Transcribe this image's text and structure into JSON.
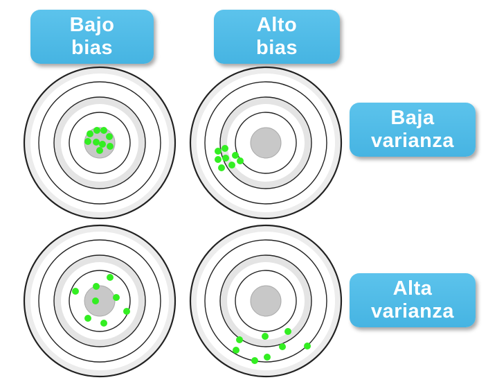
{
  "labels": {
    "low_bias": [
      "Bajo",
      "bias"
    ],
    "high_bias": [
      "Alto",
      "bias"
    ],
    "low_variance": [
      "Baja",
      "varianza"
    ],
    "high_variance": [
      "Alta",
      "varianza"
    ]
  },
  "colors": {
    "label_bg": "#4db8e5",
    "label_text": "#ffffff",
    "hit": "#33ee22",
    "bullseye": "#c8c8c8",
    "ring_light": "#e4e4e4",
    "ring_stroke": "#222222"
  }
}
